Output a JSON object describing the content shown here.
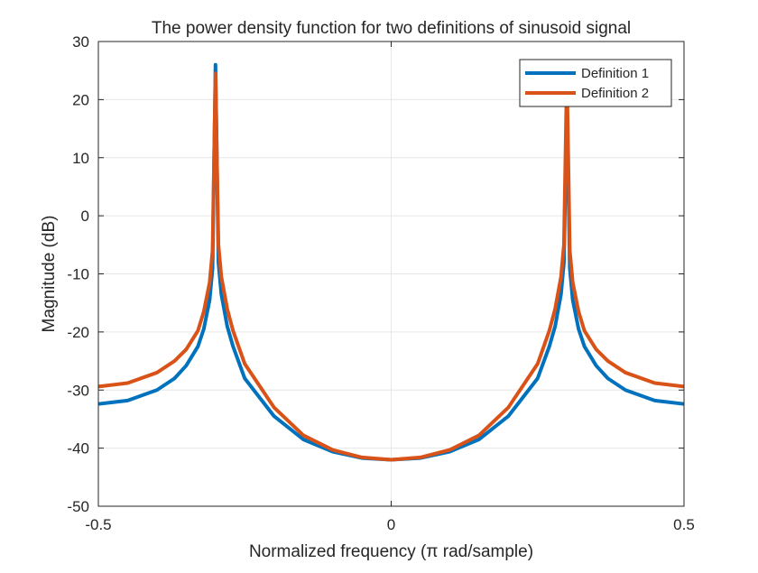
{
  "chart_data": {
    "type": "line",
    "title": "The power density function for two definitions of sinusoid signal",
    "xlabel": "Normalized frequency (π rad/sample)",
    "ylabel": "Magnitude (dB)",
    "xlim": [
      -0.5,
      0.5
    ],
    "ylim": [
      -50,
      30
    ],
    "xticks": [
      -0.5,
      0,
      0.5
    ],
    "xtick_labels": [
      "-0.5",
      "0",
      "0.5"
    ],
    "yticks": [
      -50,
      -40,
      -30,
      -20,
      -10,
      0,
      10,
      20,
      30
    ],
    "ytick_labels": [
      "-50",
      "-40",
      "-30",
      "-20",
      "-10",
      "0",
      "10",
      "20",
      "30"
    ],
    "grid": true,
    "legend_position": "top-right",
    "series": [
      {
        "name": "Definition 1",
        "color": "#0072BD",
        "x": [
          -0.5,
          -0.45,
          -0.4,
          -0.37,
          -0.35,
          -0.33,
          -0.32,
          -0.31,
          -0.305,
          -0.3,
          -0.295,
          -0.29,
          -0.28,
          -0.27,
          -0.25,
          -0.2,
          -0.15,
          -0.1,
          -0.05,
          0,
          0.05,
          0.1,
          0.15,
          0.2,
          0.25,
          0.27,
          0.28,
          0.29,
          0.295,
          0.3,
          0.305,
          0.31,
          0.32,
          0.33,
          0.35,
          0.37,
          0.4,
          0.45,
          0.5
        ],
        "y": [
          -32.4,
          -31.8,
          -30.0,
          -28.0,
          -25.8,
          -22.5,
          -19.5,
          -14.5,
          -9.0,
          26.0,
          -8.0,
          -13.5,
          -19.0,
          -22.5,
          -28.0,
          -34.5,
          -38.5,
          -40.6,
          -41.7,
          -42.0,
          -41.7,
          -40.6,
          -38.5,
          -34.5,
          -28.0,
          -22.5,
          -19.0,
          -13.5,
          -8.0,
          20.0,
          -9.0,
          -14.5,
          -19.5,
          -22.5,
          -25.8,
          -28.0,
          -30.0,
          -31.8,
          -32.4
        ]
      },
      {
        "name": "Definition 2",
        "color": "#D95319",
        "x": [
          -0.5,
          -0.45,
          -0.4,
          -0.37,
          -0.35,
          -0.33,
          -0.32,
          -0.31,
          -0.305,
          -0.3,
          -0.295,
          -0.29,
          -0.28,
          -0.27,
          -0.25,
          -0.2,
          -0.15,
          -0.1,
          -0.05,
          0,
          0.05,
          0.1,
          0.15,
          0.2,
          0.25,
          0.27,
          0.28,
          0.29,
          0.295,
          0.3,
          0.305,
          0.31,
          0.32,
          0.33,
          0.35,
          0.37,
          0.4,
          0.45,
          0.5
        ],
        "y": [
          -29.4,
          -28.8,
          -27.0,
          -25.0,
          -23.0,
          -19.8,
          -16.5,
          -11.5,
          -6.0,
          24.5,
          -5.0,
          -10.5,
          -16.0,
          -19.8,
          -25.5,
          -33.0,
          -37.8,
          -40.3,
          -41.6,
          -42.0,
          -41.6,
          -40.3,
          -37.8,
          -33.0,
          -25.5,
          -19.8,
          -16.0,
          -10.5,
          -5.0,
          24.5,
          -6.0,
          -11.5,
          -16.5,
          -19.8,
          -23.0,
          -25.0,
          -27.0,
          -28.8,
          -29.4
        ]
      }
    ]
  }
}
